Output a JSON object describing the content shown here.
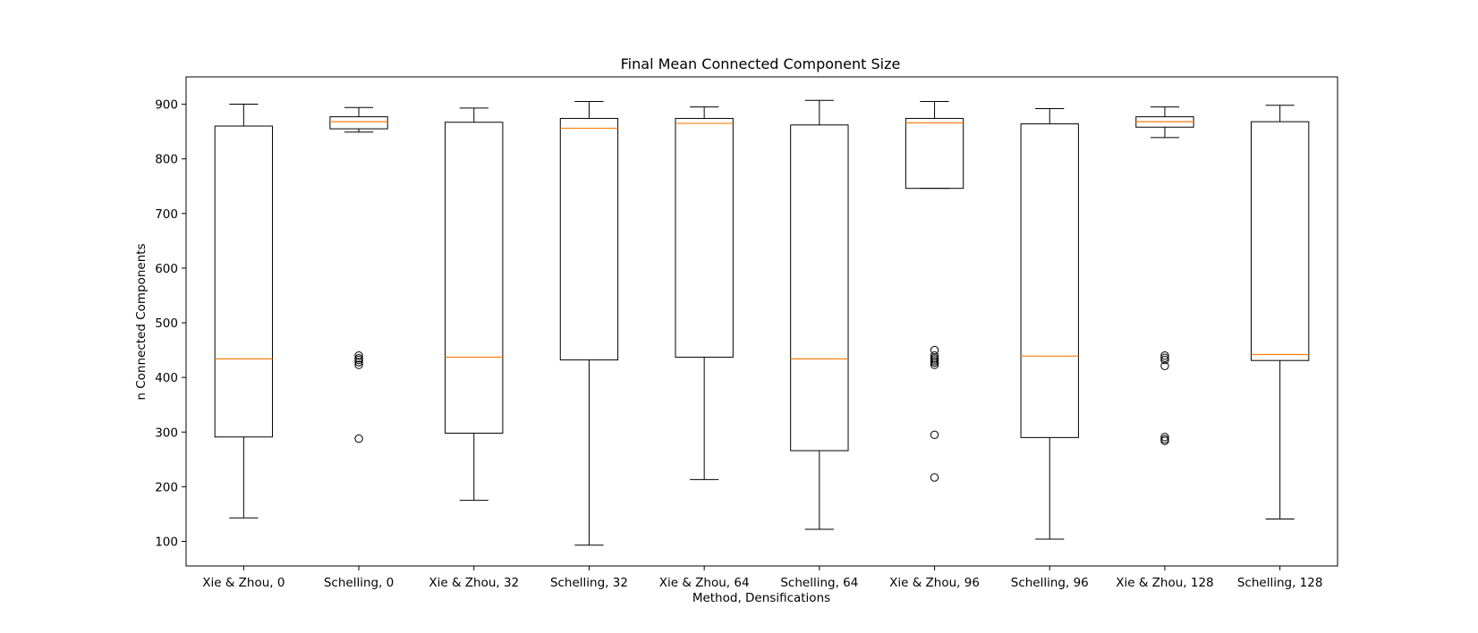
{
  "chart_data": {
    "type": "boxplot",
    "title": "Final Mean Connected Component Size",
    "xlabel": "Method, Densifications",
    "ylabel": "n Connected Components",
    "ylim": [
      55,
      950
    ],
    "yticks": [
      100,
      200,
      300,
      400,
      500,
      600,
      700,
      800,
      900
    ],
    "grid": false,
    "colors": {
      "box": "#000000",
      "median": "#ff7f0e",
      "background": "#ffffff"
    },
    "categories": [
      "Xie & Zhou, 0",
      "Schelling, 0",
      "Xie & Zhou, 32",
      "Schelling, 32",
      "Xie & Zhou, 64",
      "Schelling, 64",
      "Xie & Zhou, 96",
      "Schelling, 96",
      "Xie & Zhou, 128",
      "Schelling, 128"
    ],
    "boxes": [
      {
        "whisker_low": 143,
        "q1": 291,
        "median": 434,
        "q3": 860,
        "whisker_high": 900,
        "outliers": []
      },
      {
        "whisker_low": 849,
        "q1": 855,
        "median": 868,
        "q3": 877,
        "whisker_high": 894,
        "outliers": [
          440,
          435,
          432,
          428,
          423,
          288
        ]
      },
      {
        "whisker_low": 175,
        "q1": 298,
        "median": 437,
        "q3": 867,
        "whisker_high": 893,
        "outliers": []
      },
      {
        "whisker_low": 93,
        "q1": 432,
        "median": 856,
        "q3": 874,
        "whisker_high": 905,
        "outliers": []
      },
      {
        "whisker_low": 213,
        "q1": 437,
        "median": 865,
        "q3": 874,
        "whisker_high": 895,
        "outliers": []
      },
      {
        "whisker_low": 122,
        "q1": 266,
        "median": 434,
        "q3": 862,
        "whisker_high": 907,
        "outliers": []
      },
      {
        "whisker_low": 746,
        "q1": 746,
        "median": 866,
        "q3": 874,
        "whisker_high": 905,
        "outliers": [
          450,
          440,
          436,
          433,
          430,
          427,
          423,
          295,
          217
        ]
      },
      {
        "whisker_low": 104,
        "q1": 290,
        "median": 439,
        "q3": 864,
        "whisker_high": 892,
        "outliers": []
      },
      {
        "whisker_low": 839,
        "q1": 858,
        "median": 868,
        "q3": 877,
        "whisker_high": 895,
        "outliers": [
          440,
          436,
          432,
          421,
          291,
          287,
          284
        ]
      },
      {
        "whisker_low": 141,
        "q1": 431,
        "median": 442,
        "q3": 868,
        "whisker_high": 898,
        "outliers": []
      }
    ]
  }
}
